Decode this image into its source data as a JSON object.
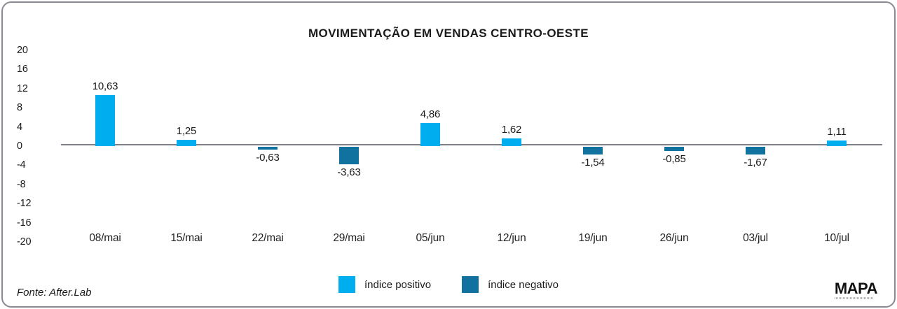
{
  "card": {
    "title": "MOVIMENTAÇÃO EM VENDAS CENTRO-OESTE",
    "source": "Fonte: After.Lab",
    "logo": "MAPA"
  },
  "legend": {
    "positive_label": "índice positivo",
    "negative_label": "índice negativo"
  },
  "colors": {
    "positive": "#00AEEF",
    "negative": "#11719F",
    "axis_line": "#7F7F88",
    "border": "#8A8A93"
  },
  "chart_data": {
    "type": "bar",
    "title": "MOVIMENTAÇÃO EM VENDAS CENTRO-OESTE",
    "categories": [
      "08/mai",
      "15/mai",
      "22/mai",
      "29/mai",
      "05/jun",
      "12/jun",
      "19/jun",
      "26/jun",
      "03/jul",
      "10/jul"
    ],
    "values": [
      10.63,
      1.25,
      -0.63,
      -3.63,
      4.86,
      1.62,
      -1.54,
      -0.85,
      -1.67,
      1.11
    ],
    "value_labels": [
      "10,63",
      "1,25",
      "-0,63",
      "-3,63",
      "4,86",
      "1,62",
      "-1,54",
      "-0,85",
      "-1,67",
      "1,11"
    ],
    "yticks": [
      20,
      16,
      12,
      8,
      4,
      0,
      -4,
      -8,
      -12,
      -16,
      -20
    ],
    "ylim": [
      -20,
      20
    ],
    "xlabel": "",
    "ylabel": "",
    "grid": false,
    "legend_position": "bottom",
    "legend": [
      "índice positivo",
      "índice negativo"
    ],
    "source": "Fonte: After.Lab"
  }
}
